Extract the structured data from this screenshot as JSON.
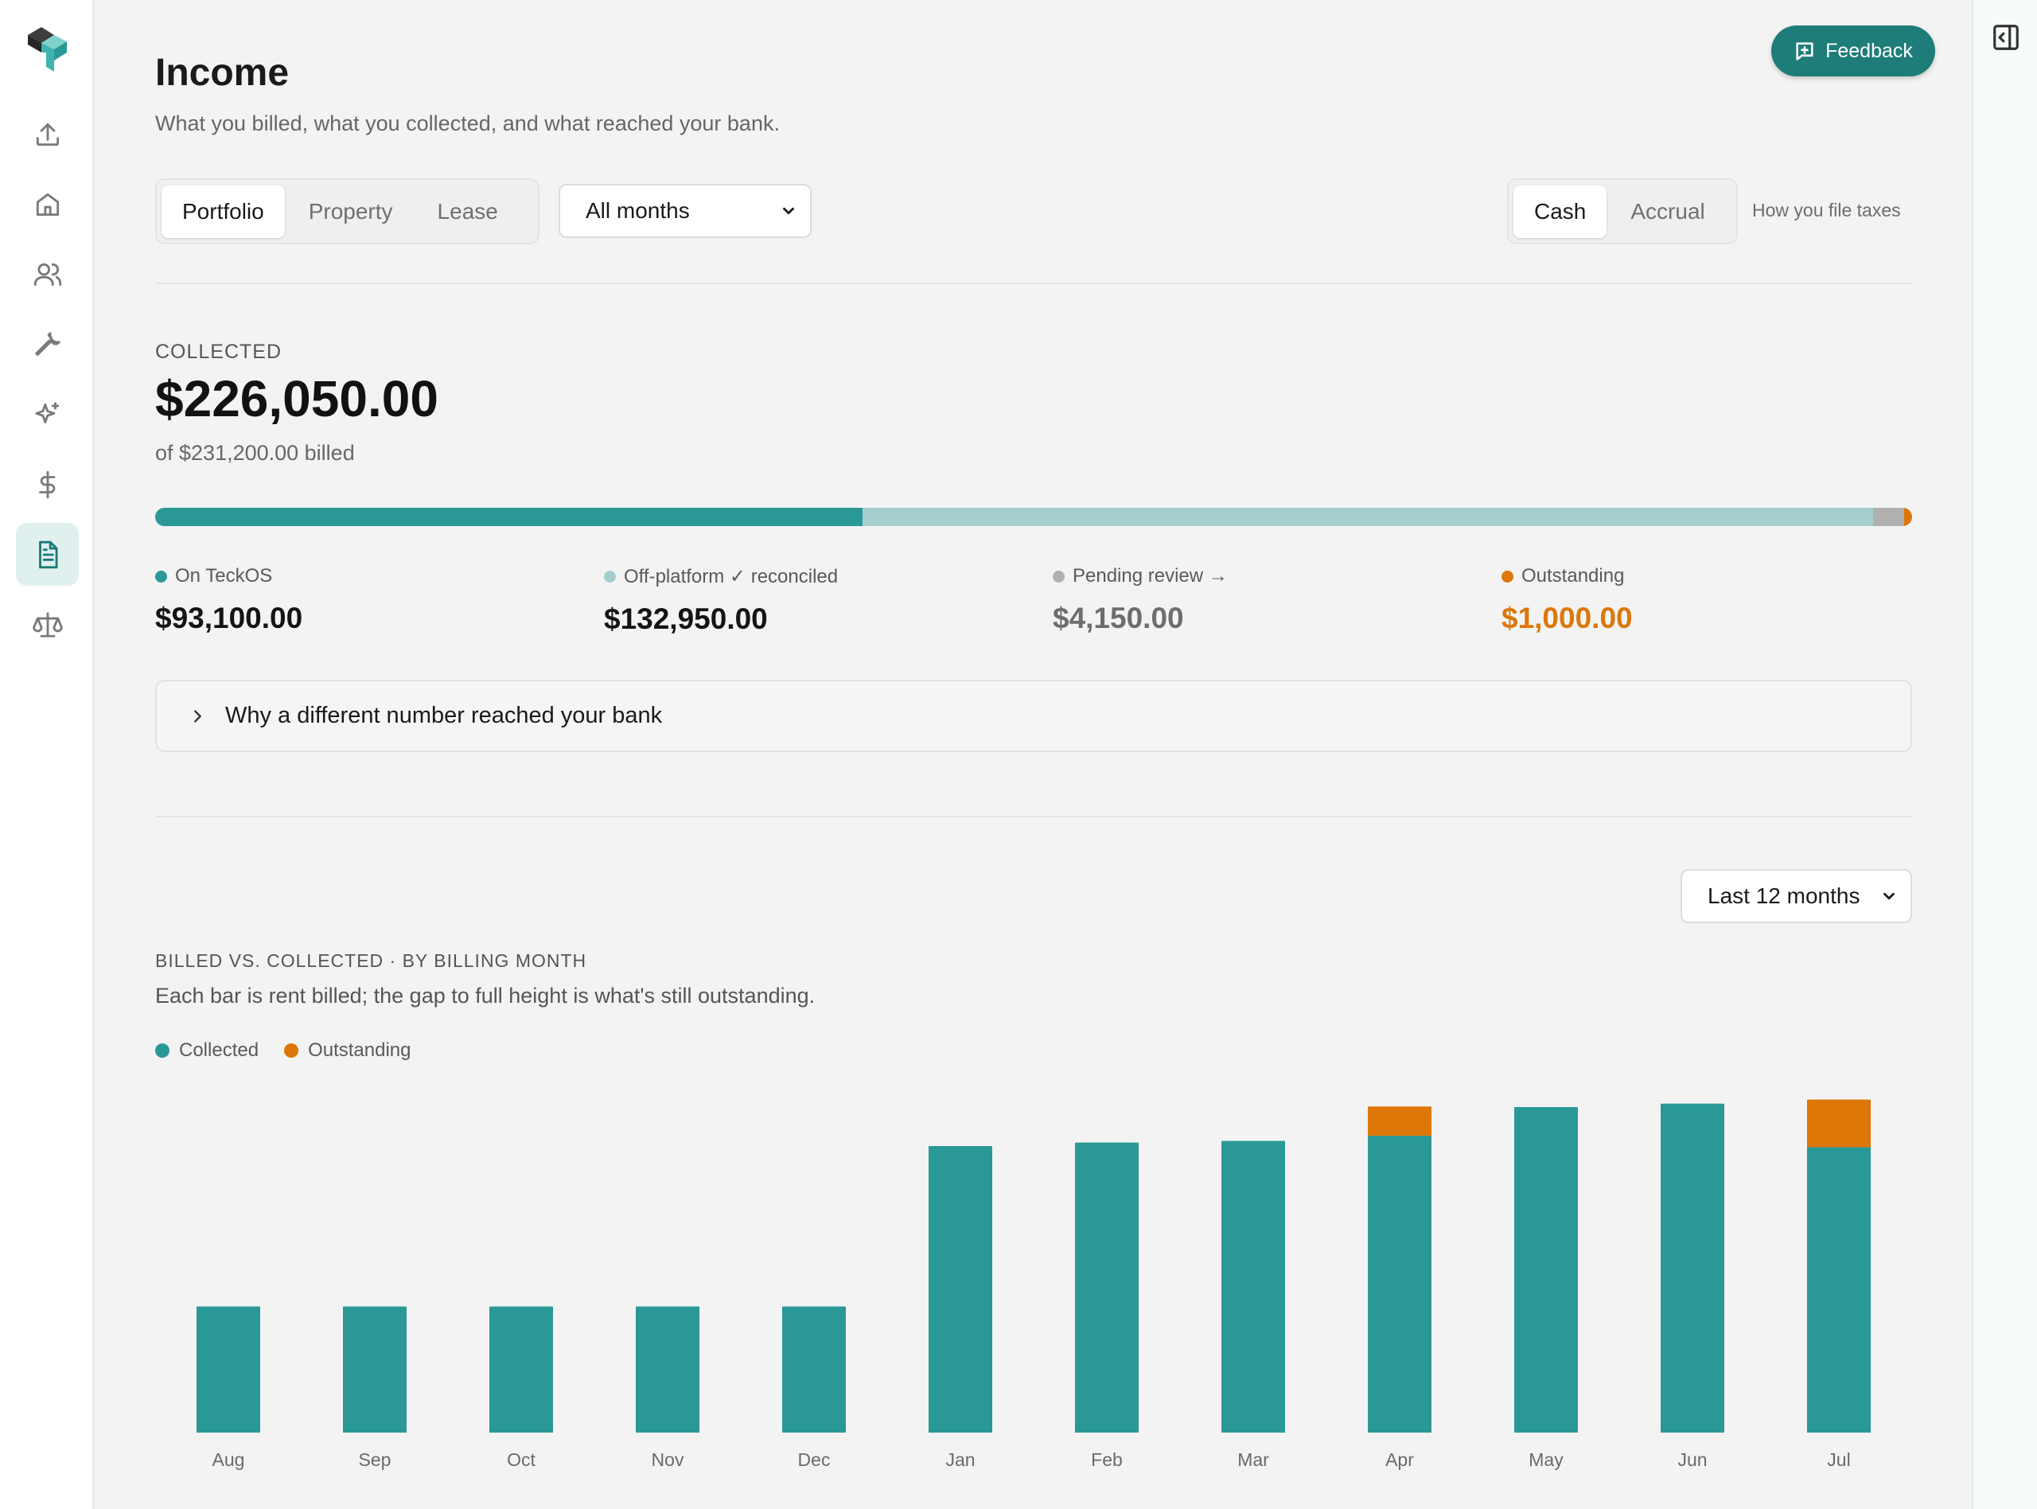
{
  "sidebar": {
    "items": [
      {
        "icon": "upload-icon",
        "active": false
      },
      {
        "icon": "home-icon",
        "active": false
      },
      {
        "icon": "users-icon",
        "active": false
      },
      {
        "icon": "wrench-icon",
        "active": false
      },
      {
        "icon": "sparkles-icon",
        "active": false
      },
      {
        "icon": "dollar-icon",
        "active": false
      },
      {
        "icon": "document-icon",
        "active": true
      },
      {
        "icon": "scale-icon",
        "active": false
      }
    ]
  },
  "header": {
    "title": "Income",
    "subtitle": "What you billed, what you collected, and what reached your bank.",
    "feedback_label": "Feedback"
  },
  "controls": {
    "scope_options": [
      "Portfolio",
      "Property",
      "Lease"
    ],
    "scope_selected": "Portfolio",
    "period_value": "All months",
    "basis_options": [
      "Cash",
      "Accrual"
    ],
    "basis_selected": "Cash",
    "basis_note": "How you file taxes"
  },
  "summary": {
    "label": "COLLECTED",
    "amount": "$226,050.00",
    "billed_note": "of $231,200.00 billed",
    "breakdown": [
      {
        "label": "On TeckOS",
        "value": "$93,100.00",
        "color": "#2a9897",
        "amount": 93100
      },
      {
        "label": "Off-platform ✓ reconciled",
        "value": "$132,950.00",
        "color": "#a5cfcf",
        "amount": 132950
      },
      {
        "label": "Pending review →",
        "value": "$4,150.00",
        "color": "#b0b0b0",
        "amount": 4150
      },
      {
        "label": "Outstanding",
        "value": "$1,000.00",
        "color": "#dd7708",
        "amount": 1000
      }
    ]
  },
  "accordion": {
    "label": "Why a different number reached your bank"
  },
  "chart_section": {
    "range_value": "Last 12 months",
    "heading": "BILLED VS. COLLECTED · BY BILLING MONTH",
    "description": "Each bar is rent billed; the gap to full height is what's still outstanding.",
    "legend": [
      {
        "label": "Collected",
        "color": "#2a9897"
      },
      {
        "label": "Outstanding",
        "color": "#dd7708"
      }
    ]
  },
  "chart_data": {
    "type": "bar",
    "stacked": true,
    "categories": [
      "Aug",
      "Sep",
      "Oct",
      "Nov",
      "Dec",
      "Jan",
      "Feb",
      "Mar",
      "Apr",
      "May",
      "Jun",
      "Jul"
    ],
    "series": [
      {
        "name": "Collected",
        "color": "#2a9897",
        "values": [
          11000,
          11000,
          11000,
          11000,
          11000,
          25000,
          25300,
          25450,
          25900,
          28400,
          28700,
          24900
        ]
      },
      {
        "name": "Outstanding",
        "color": "#dd7708",
        "values": [
          0,
          0,
          0,
          0,
          0,
          0,
          0,
          0,
          2550,
          0,
          0,
          4150
        ]
      }
    ],
    "ylim": [
      0,
      30000
    ],
    "grid": false,
    "legend_position": "top-left"
  }
}
